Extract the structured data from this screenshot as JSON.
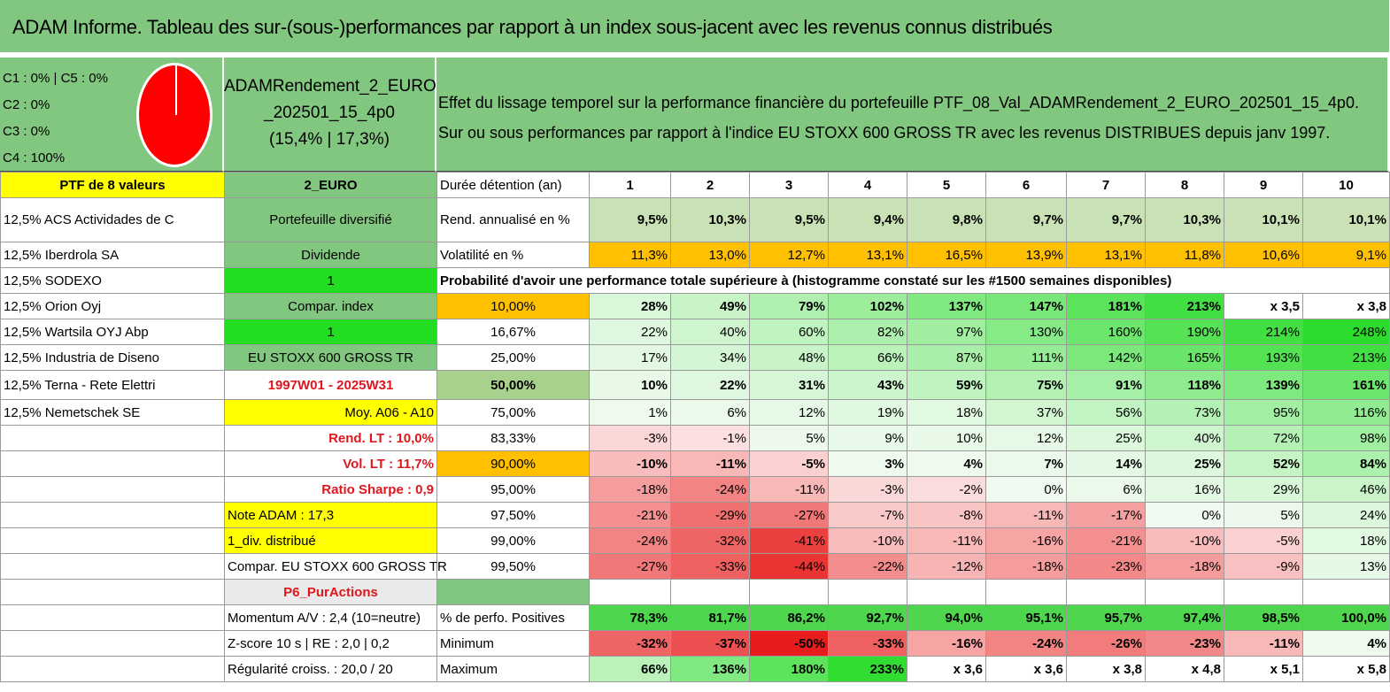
{
  "title": "ADAM Informe. Tableau des sur-(sous-)performances par rapport à un index sous-jacent avec les revenus connus distribués",
  "header": {
    "c_lines": [
      "C1 : 0% | C5 : 0%",
      "C2 : 0%",
      "C3 : 0%",
      "C4 : 100%"
    ],
    "fund_name_line1": "ADAMRendement_2_EURO",
    "fund_name_line2": "_202501_15_4p0",
    "fund_name_line3": "(15,4% | 17,3%)",
    "desc_line1": "Effet du lissage temporel sur la performance financière du portefeuille PTF_08_Val_ADAMRendement_2_EURO_202501_15_4p0.",
    "desc_line2": "Sur ou sous performances par rapport à l'indice EU STOXX 600 GROSS TR avec les revenus DISTRIBUES depuis janv 1997."
  },
  "colors": {
    "green": "#82c77f",
    "yellow": "#ffff00",
    "orange": "#ffc000",
    "pie": "#ff0000"
  },
  "rows": {
    "holding_header": {
      "col1": "PTF de 8 valeurs",
      "col2": "2_EURO",
      "label": "Durée détention (an)",
      "years": [
        "1",
        "2",
        "3",
        "4",
        "5",
        "6",
        "7",
        "8",
        "9",
        "10"
      ]
    },
    "rend": {
      "col1": "12,5% ACS Actividades de C",
      "col2": "Portefeuille diversifié",
      "label": "Rend. annualisé en %",
      "values": [
        "9,5%",
        "10,3%",
        "9,5%",
        "9,4%",
        "9,8%",
        "9,7%",
        "9,7%",
        "10,3%",
        "10,1%",
        "10,1%"
      ]
    },
    "vol": {
      "col1": "12,5% Iberdrola SA",
      "col2": "Dividende",
      "label": "Volatilité en %",
      "values": [
        "11,3%",
        "13,0%",
        "12,7%",
        "13,1%",
        "16,5%",
        "13,9%",
        "13,1%",
        "11,8%",
        "10,6%",
        "9,1%"
      ]
    },
    "proba": {
      "col1": "12,5% SODEXO",
      "col2": "1",
      "label": "Probabilité d'avoir une performance totale supérieure à (histogramme constaté sur les #1500 semaines disponibles)"
    },
    "p10": {
      "col1": "12,5% Orion Oyj",
      "col2": "Compar. index",
      "label": "10,00%",
      "values": [
        "28%",
        "49%",
        "79%",
        "102%",
        "137%",
        "147%",
        "181%",
        "213%",
        "x 3,5",
        "x 3,8"
      ]
    },
    "p16": {
      "col1": "12,5% Wartsila OYJ Abp",
      "col2": "1",
      "label": "16,67%",
      "values": [
        "22%",
        "40%",
        "60%",
        "82%",
        "97%",
        "130%",
        "160%",
        "190%",
        "214%",
        "248%"
      ]
    },
    "p25": {
      "col1": "12,5% Industria de Diseno",
      "col2": "EU STOXX 600 GROSS TR",
      "label": "25,00%",
      "values": [
        "17%",
        "34%",
        "48%",
        "66%",
        "87%",
        "111%",
        "142%",
        "165%",
        "193%",
        "213%"
      ]
    },
    "p50": {
      "col1": "12,5% Terna - Rete Elettri",
      "col2": "1997W01 - 2025W31",
      "label": "50,00%",
      "values": [
        "10%",
        "22%",
        "31%",
        "43%",
        "59%",
        "75%",
        "91%",
        "118%",
        "139%",
        "161%"
      ]
    },
    "p75": {
      "col1": "12,5% Nemetschek SE",
      "col2": "Moy. A06 - A10",
      "label": "75,00%",
      "values": [
        "1%",
        "6%",
        "12%",
        "19%",
        "18%",
        "37%",
        "56%",
        "73%",
        "95%",
        "116%"
      ]
    },
    "p83": {
      "col1": "",
      "col2": "Rend. LT : 10,0%",
      "label": "83,33%",
      "values": [
        "-3%",
        "-1%",
        "5%",
        "9%",
        "10%",
        "12%",
        "25%",
        "40%",
        "72%",
        "98%"
      ]
    },
    "p90": {
      "col1": "",
      "col2": "Vol. LT : 11,7%",
      "label": "90,00%",
      "values": [
        "-10%",
        "-11%",
        "-5%",
        "3%",
        "4%",
        "7%",
        "14%",
        "25%",
        "52%",
        "84%"
      ]
    },
    "p95": {
      "col1": "",
      "col2": "Ratio Sharpe : 0,9",
      "label": "95,00%",
      "values": [
        "-18%",
        "-24%",
        "-11%",
        "-3%",
        "-2%",
        "0%",
        "6%",
        "16%",
        "29%",
        "46%"
      ]
    },
    "p975": {
      "col2": "Note ADAM : 17,3",
      "label": "97,50%",
      "values": [
        "-21%",
        "-29%",
        "-27%",
        "-7%",
        "-8%",
        "-11%",
        "-17%",
        "0%",
        "5%",
        "24%"
      ]
    },
    "p99": {
      "col2": "1_div. distribué",
      "label": "99,00%",
      "values": [
        "-24%",
        "-32%",
        "-41%",
        "-10%",
        "-11%",
        "-16%",
        "-21%",
        "-10%",
        "-5%",
        "18%"
      ]
    },
    "p995": {
      "col2": "Compar. EU STOXX 600 GROSS TR",
      "label": "99,50%",
      "values": [
        "-27%",
        "-33%",
        "-44%",
        "-22%",
        "-12%",
        "-18%",
        "-23%",
        "-18%",
        "-9%",
        "13%"
      ]
    },
    "p6": {
      "col2": "P6_PurActions"
    },
    "positives": {
      "col2": "Momentum A/V : 2,4 (10=neutre)",
      "label": "% de perfo. Positives",
      "values": [
        "78,3%",
        "81,7%",
        "86,2%",
        "92,7%",
        "94,0%",
        "95,1%",
        "95,7%",
        "97,4%",
        "98,5%",
        "100,0%"
      ]
    },
    "minimum": {
      "col2": "Z-score 10 s | RE : 2,0 | 0,2",
      "label": "Minimum",
      "values": [
        "-32%",
        "-37%",
        "-50%",
        "-33%",
        "-16%",
        "-24%",
        "-26%",
        "-23%",
        "-11%",
        "4%"
      ]
    },
    "maximum": {
      "col2": "Régularité croiss. : 20,0 / 20",
      "label": "Maximum",
      "values": [
        "66%",
        "136%",
        "180%",
        "233%",
        "x 3,6",
        "x 3,6",
        "x 3,8",
        "x 4,8",
        "x 5,1",
        "x 5,8"
      ]
    }
  }
}
